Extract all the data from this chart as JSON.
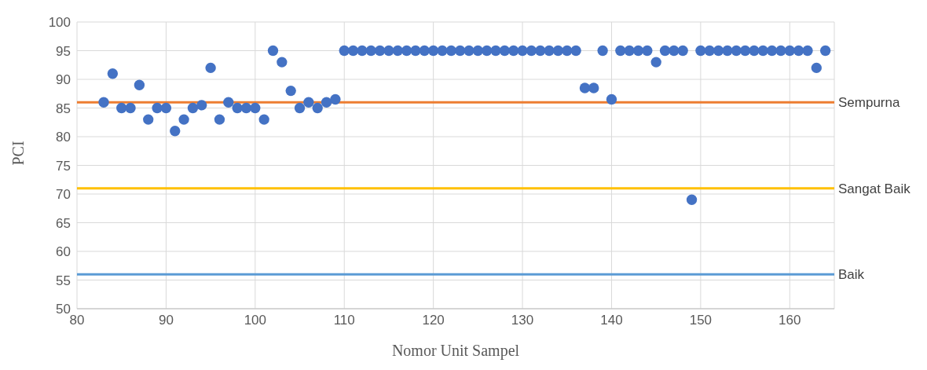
{
  "chart_data": {
    "type": "scatter",
    "xlabel": "Nomor Unit Sampel",
    "ylabel": "PCI",
    "x": [
      83,
      84,
      85,
      86,
      87,
      88,
      89,
      90,
      91,
      92,
      93,
      94,
      95,
      96,
      97,
      98,
      99,
      100,
      101,
      102,
      103,
      104,
      105,
      106,
      107,
      108,
      109,
      110,
      111,
      112,
      113,
      114,
      115,
      116,
      117,
      118,
      119,
      120,
      121,
      122,
      123,
      124,
      125,
      126,
      127,
      128,
      129,
      130,
      131,
      132,
      133,
      134,
      135,
      136,
      137,
      138,
      139,
      140,
      141,
      142,
      143,
      144,
      145,
      146,
      147,
      148,
      149,
      150,
      151,
      152,
      153,
      154,
      155,
      156,
      157,
      158,
      159,
      160,
      161,
      162,
      163,
      164
    ],
    "series": [
      {
        "color": "#4472c4",
        "values": [
          86,
          91,
          85,
          85,
          89,
          83,
          85,
          85,
          81,
          83,
          85,
          85.5,
          92,
          83,
          86,
          85,
          85,
          85,
          83,
          95,
          93,
          88,
          85,
          86,
          85,
          86,
          86.5,
          95,
          95,
          95,
          95,
          95,
          95,
          95,
          95,
          95,
          95,
          95,
          95,
          95,
          95,
          95,
          95,
          95,
          95,
          95,
          95,
          95,
          95,
          95,
          95,
          95,
          95,
          95,
          88.5,
          88.5,
          95,
          86.5,
          95,
          95,
          95,
          95,
          93,
          95,
          95,
          95,
          69,
          95,
          95,
          95,
          95,
          95,
          95,
          95,
          95,
          95,
          95,
          95,
          95,
          95,
          92,
          95
        ]
      }
    ],
    "xlim": [
      80,
      165
    ],
    "xticks": [
      80,
      90,
      100,
      110,
      120,
      130,
      140,
      150,
      160
    ],
    "ylim": [
      50,
      100
    ],
    "yticks": [
      50,
      55,
      60,
      65,
      70,
      75,
      80,
      85,
      90,
      95,
      100
    ],
    "ref_lines": [
      {
        "axis": "y",
        "value": 86,
        "label": "Sempurna",
        "color": "#ed7d31"
      },
      {
        "axis": "y",
        "value": 71,
        "label": "Sangat Baik",
        "color": "#ffc000"
      },
      {
        "axis": "y",
        "value": 56,
        "label": "Baik",
        "color": "#5b9bd5"
      }
    ],
    "grid": true,
    "marker": "circle"
  }
}
